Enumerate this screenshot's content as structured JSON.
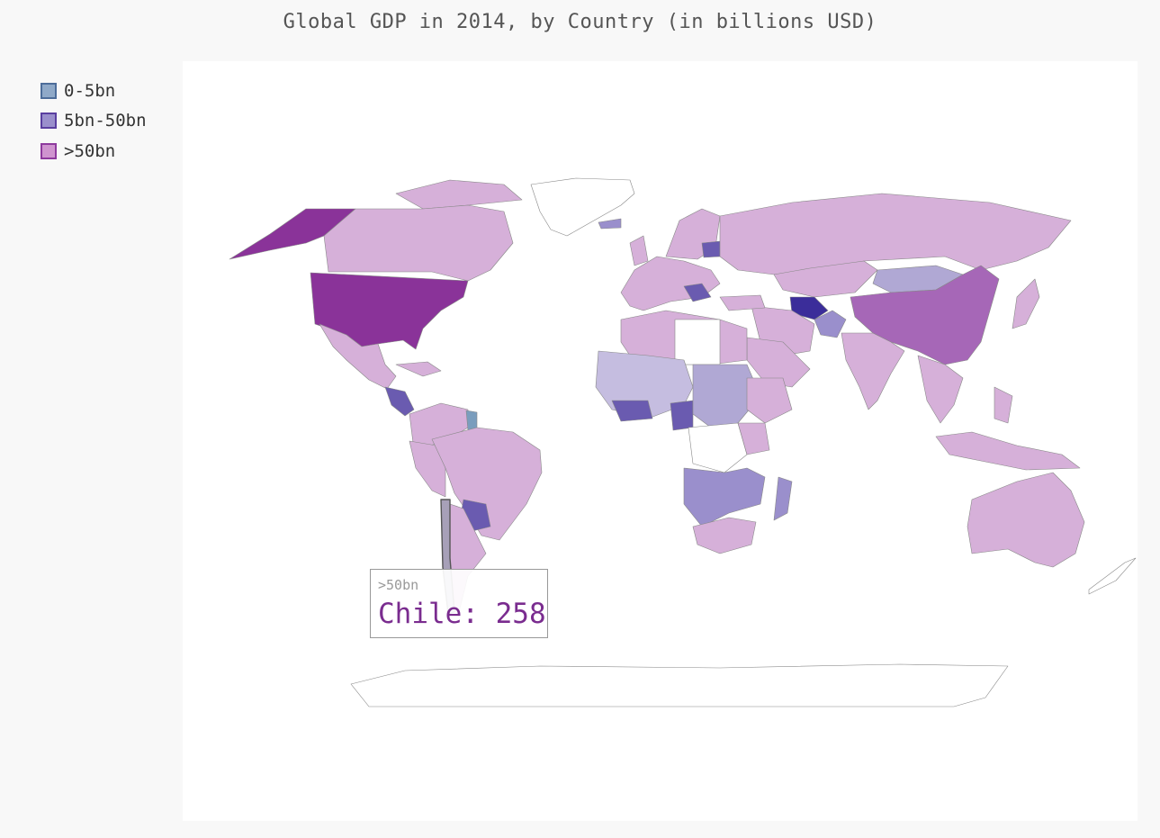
{
  "title": "Global GDP in 2014, by Country (in billions USD)",
  "legend": [
    {
      "label": "0-5bn",
      "fill": "#8fa9c8",
      "stroke": "#4d6d9a"
    },
    {
      "label": "5bn-50bn",
      "fill": "#9a8fcc",
      "stroke": "#5a3fa0"
    },
    {
      "label": ">50bn",
      "fill": "#cf94cf",
      "stroke": "#8e3a9e"
    }
  ],
  "colors": {
    "low": "#7a9dbd",
    "mid": "#6a5bb0",
    "high_dark": "#8a3399",
    "high_light": "#d6b0d9",
    "empty": "#ffffff",
    "border": "#888888"
  },
  "tooltip": {
    "category": ">50bn",
    "country_value": "Chile: 258"
  },
  "hover_country": {
    "name": "Chile",
    "gdp_billions_usd": 258,
    "category": ">50bn"
  }
}
